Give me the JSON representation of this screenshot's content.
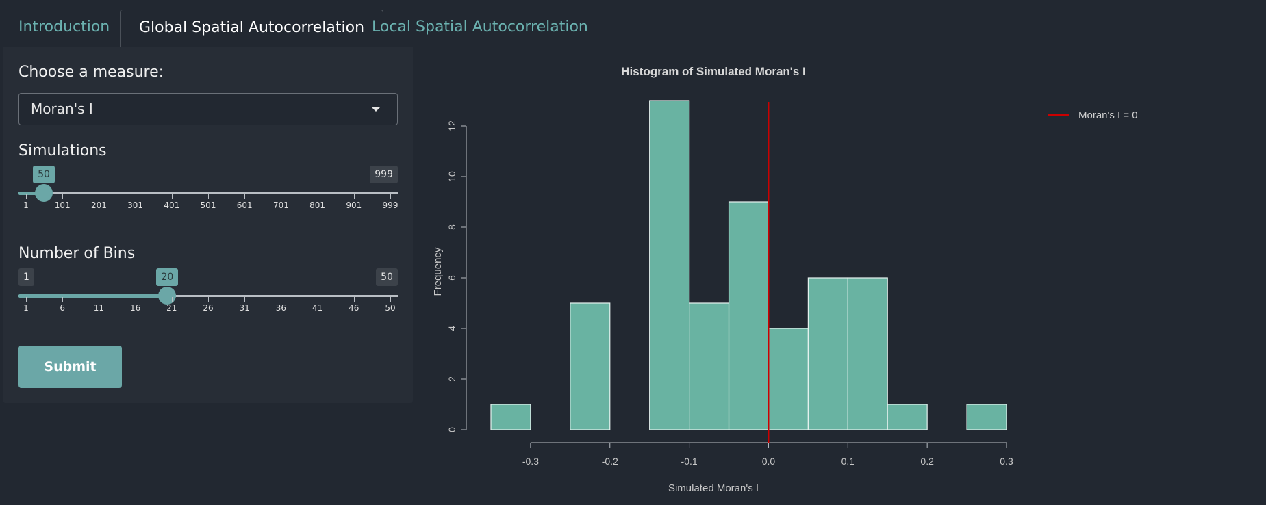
{
  "tabs": [
    "Introduction",
    "Global Spatial Autocorrelation",
    "Local Spatial Autocorrelation"
  ],
  "sidebar": {
    "measure_label": "Choose a measure:",
    "measure_value": "Moran's I",
    "simulations": {
      "label": "Simulations",
      "min": "1",
      "max": "999",
      "value": "50",
      "value_fraction": 0.049,
      "ticks": [
        "1",
        "101",
        "201",
        "301",
        "401",
        "501",
        "601",
        "701",
        "801",
        "901",
        "999"
      ]
    },
    "bins": {
      "label": "Number of Bins",
      "min": "1",
      "max": "50",
      "value": "20",
      "value_fraction": 0.388,
      "ticks": [
        "1",
        "6",
        "11",
        "16",
        "21",
        "26",
        "31",
        "36",
        "41",
        "46",
        "50"
      ]
    },
    "submit_label": "Submit"
  },
  "colors": {
    "bar": "#69b3a2",
    "line": "#cc0000",
    "accent": "#6ba7a7"
  },
  "chart_data": {
    "type": "bar",
    "title": "Histogram of Simulated Moran's I",
    "xlabel": "Simulated Moran's I",
    "ylabel": "Frequency",
    "bin_edges": [
      -0.35,
      -0.3,
      -0.25,
      -0.2,
      -0.15,
      -0.1,
      -0.05,
      0.0,
      0.05,
      0.1,
      0.15,
      0.2,
      0.25,
      0.3
    ],
    "values": [
      1,
      0,
      5,
      0,
      13,
      5,
      9,
      4,
      6,
      6,
      1,
      0,
      1
    ],
    "xlim": [
      -0.35,
      0.3
    ],
    "ylim": [
      0,
      13
    ],
    "xticks": [
      "-0.3",
      "-0.2",
      "-0.1",
      "0.0",
      "0.1",
      "0.2",
      "0.3"
    ],
    "yticks": [
      "0",
      "2",
      "4",
      "6",
      "8",
      "10",
      "12"
    ],
    "reference_line": {
      "x": 0,
      "label": "Moran's I = 0"
    },
    "legend_position": "top-right"
  }
}
